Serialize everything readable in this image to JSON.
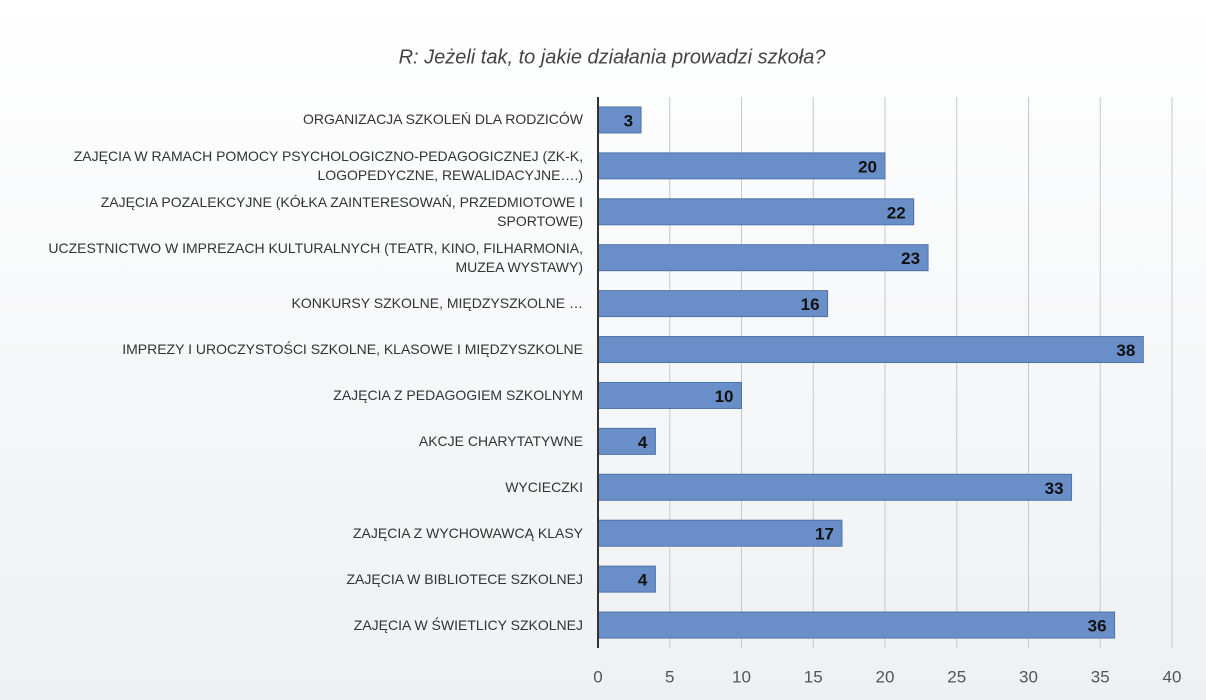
{
  "chart_data": {
    "type": "barh",
    "title": "R:  Jeżeli tak, to jakie działania prowadzi szkoła?",
    "categories": [
      "ORGANIZACJA SZKOLEŃ DLA RODZICÓW",
      "ZAJĘCIA W RAMACH POMOCY PSYCHOLOGICZNO-PEDAGOGICZNEJ (ZK-K, LOGOPEDYCZNE, REWALIDACYJNE….)",
      "ZAJĘCIA POZALEKCYJNE (KÓŁKA ZAINTERESOWAŃ, PRZEDMIOTOWE I SPORTOWE)",
      "UCZESTNICTWO W IMPREZACH KULTURALNYCH (TEATR, KINO, FILHARMONIA, MUZEA WYSTAWY)",
      "KONKURSY SZKOLNE, MIĘDZYSZKOLNE …",
      "IMPREZY I UROCZYSTOŚCI SZKOLNE, KLASOWE I MIĘDZYSZKOLNE",
      "ZAJĘCIA Z PEDAGOGIEM SZKOLNYM",
      "AKCJE CHARYTATYWNE",
      "WYCIECZKI",
      "ZAJĘCIA Z WYCHOWAWCĄ KLASY",
      "ZAJĘCIA W BIBLIOTECE SZKOLNEJ",
      "ZAJĘCIA W ŚWIETLICY SZKOLNEJ"
    ],
    "values": [
      3,
      20,
      22,
      23,
      16,
      38,
      10,
      4,
      33,
      17,
      4,
      36
    ],
    "color": "#6a8fc8",
    "xlim": [
      0,
      40
    ],
    "xticks": [
      0,
      5,
      10,
      15,
      20,
      25,
      30,
      35,
      40
    ],
    "grid": true
  }
}
